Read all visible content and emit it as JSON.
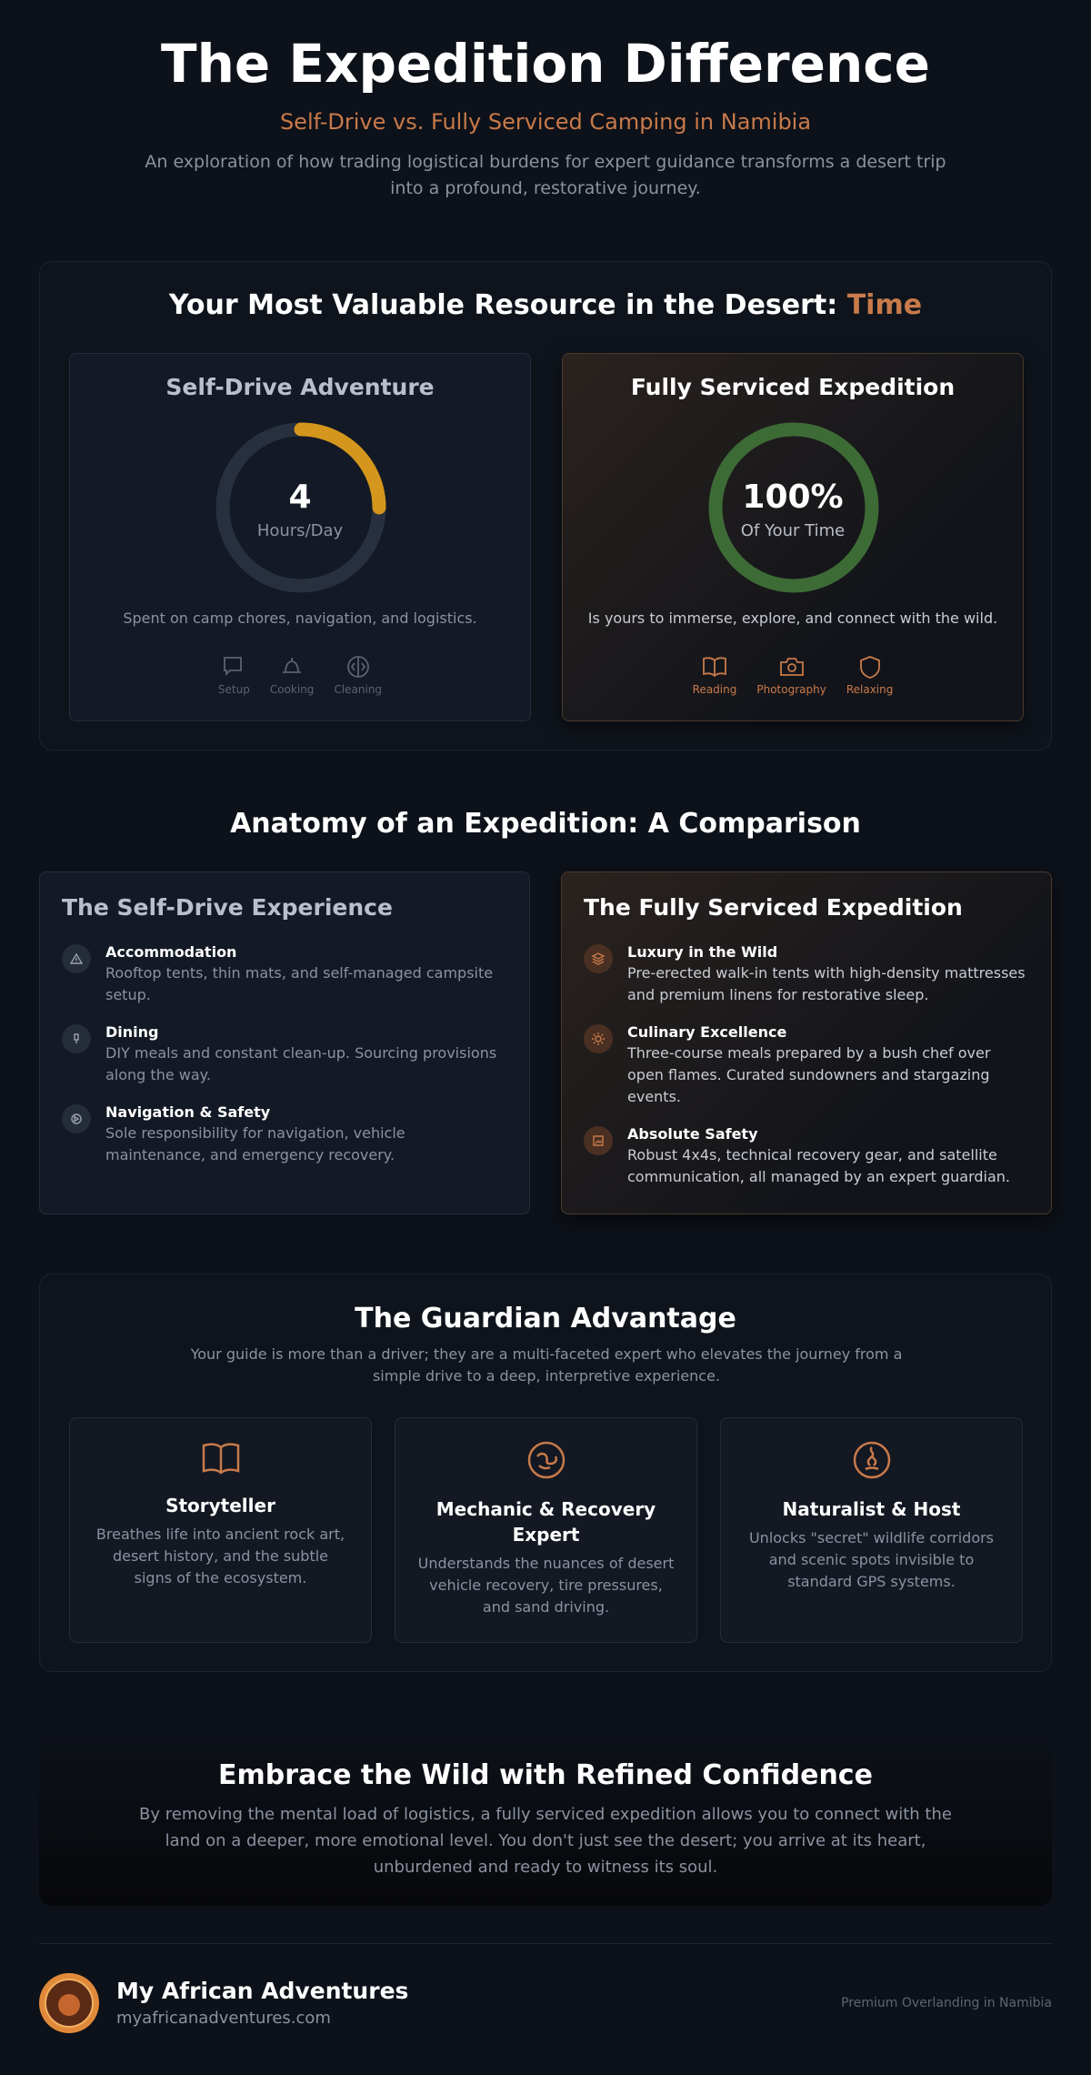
{
  "header": {
    "title": "The Expedition Difference",
    "subtitle": "Self-Drive vs. Fully Serviced Camping in Namibia",
    "description": "An exploration of how trading logistical burdens for expert guidance transforms a desert trip into a profound, restorative journey."
  },
  "time": {
    "title_prefix": "Your Most Valuable Resource in the Desert:",
    "title_highlight": "Time",
    "self_drive": {
      "title": "Self-Drive Adventure",
      "value": "4",
      "unit": "Hours/Day",
      "caption": "Spent on camp chores, navigation, and logistics.",
      "icons": [
        "Setup",
        "Cooking",
        "Cleaning"
      ]
    },
    "serviced": {
      "title": "Fully Serviced Expedition",
      "value": "100%",
      "unit": "Of Your Time",
      "caption": "Is yours to immerse, explore, and connect with the wild.",
      "icons": [
        "Reading",
        "Photography",
        "Relaxing"
      ]
    }
  },
  "comparison": {
    "title": "Anatomy of an Expedition: A Comparison",
    "self_drive": {
      "title": "The Self-Drive Experience",
      "items": [
        {
          "title": "Accommodation",
          "text": "Rooftop tents, thin mats, and self-managed campsite setup."
        },
        {
          "title": "Dining",
          "text": "DIY meals and constant clean-up. Sourcing provisions along the way."
        },
        {
          "title": "Navigation & Safety",
          "text": "Sole responsibility for navigation, vehicle maintenance, and emergency recovery."
        }
      ]
    },
    "serviced": {
      "title": "The Fully Serviced Expedition",
      "items": [
        {
          "title": "Luxury in the Wild",
          "text": "Pre-erected walk-in tents with high-density mattresses and premium linens for restorative sleep."
        },
        {
          "title": "Culinary Excellence",
          "text": "Three-course meals prepared by a bush chef over open flames. Curated sundowners and stargazing events."
        },
        {
          "title": "Absolute Safety",
          "text": "Robust 4x4s, technical recovery gear, and satellite communication, all managed by an expert guardian."
        }
      ]
    }
  },
  "guardian": {
    "title": "The Guardian Advantage",
    "description": "Your guide is more than a driver; they are a multi-faceted expert who elevates the journey from a simple drive to a deep, interpretive experience.",
    "roles": [
      {
        "title": "Storyteller",
        "text": "Breathes life into ancient rock art, desert history, and the subtle signs of the ecosystem."
      },
      {
        "title": "Mechanic & Recovery Expert",
        "text": "Understands the nuances of desert vehicle recovery, tire pressures, and sand driving."
      },
      {
        "title": "Naturalist & Host",
        "text": "Unlocks \"secret\" wildlife corridors and scenic spots invisible to standard GPS systems."
      }
    ]
  },
  "cta": {
    "title": "Embrace the Wild with Refined Confidence",
    "text": "By removing the mental load of logistics, a fully serviced expedition allows you to connect with the land on a deeper, more emotional level. You don't just see the desert; you arrive at its heart, unburdened and ready to witness its soul."
  },
  "footer": {
    "brand": "My African Adventures",
    "url": "myafricanadventures.com",
    "tagline": "Premium Overlanding in Namibia"
  }
}
